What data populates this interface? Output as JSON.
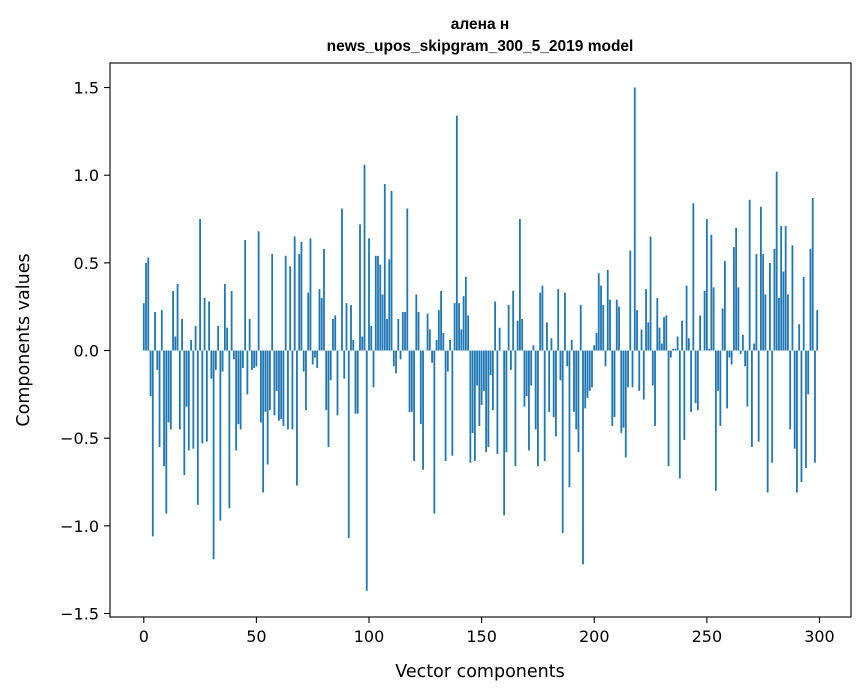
{
  "chart_data": {
    "type": "bar",
    "title": "алена н",
    "subtitle": "news_upos_skipgram_300_5_2019 model",
    "xlabel": "Vector components",
    "ylabel": "Components values",
    "xlim": [
      -15,
      314
    ],
    "ylim": [
      -1.52,
      1.64
    ],
    "xticks": [
      0,
      50,
      100,
      150,
      200,
      250,
      300
    ],
    "yticks": [
      -1.5,
      -1.0,
      -0.5,
      0.0,
      0.5,
      1.0,
      1.5
    ],
    "ytick_labels": [
      "−1.5",
      "−1.0",
      "−0.5",
      "0.0",
      "0.5",
      "1.0",
      "1.5"
    ],
    "grid": false,
    "bar_color": "#1f77b4",
    "values": [
      0.27,
      0.5,
      0.53,
      -0.26,
      -1.06,
      0.22,
      -0.11,
      -0.55,
      0.23,
      -0.66,
      -0.93,
      -0.41,
      -0.45,
      0.34,
      0.08,
      0.38,
      -0.45,
      0.18,
      -0.71,
      -0.32,
      -0.57,
      0.06,
      -0.56,
      0.14,
      -0.88,
      0.75,
      -0.53,
      0.3,
      -0.52,
      0.28,
      -0.16,
      -1.19,
      -0.11,
      0.14,
      -0.97,
      -0.12,
      0.38,
      0.13,
      -0.9,
      0.34,
      -0.05,
      -0.57,
      -0.42,
      -0.45,
      -0.1,
      0.63,
      -0.25,
      0.18,
      -0.11,
      -0.1,
      -0.09,
      0.68,
      -0.41,
      -0.81,
      -0.35,
      -0.65,
      -0.34,
      0.55,
      -0.37,
      -0.23,
      -0.4,
      -0.39,
      -0.43,
      0.54,
      -0.45,
      0.48,
      -0.45,
      0.65,
      -0.77,
      0.55,
      0.62,
      -0.12,
      -0.34,
      0.33,
      0.64,
      -0.08,
      -0.04,
      -0.1,
      0.35,
      0.3,
      0.58,
      -0.34,
      -0.55,
      -0.17,
      0.18,
      0.2,
      -0.37,
      0.0,
      0.81,
      -0.16,
      0.27,
      -1.07,
      0.26,
      0.06,
      -0.36,
      -0.36,
      0.72,
      0.08,
      1.06,
      -1.37,
      0.64,
      0.14,
      -0.21,
      0.54,
      0.54,
      0.49,
      0.32,
      0.95,
      0.18,
      0.52,
      0.91,
      -0.09,
      -0.13,
      0.18,
      -0.05,
      0.22,
      0.22,
      0.81,
      -0.35,
      -0.35,
      -0.63,
      0.32,
      0.22,
      -0.42,
      -0.68,
      0.0,
      0.21,
      0.12,
      -0.07,
      -0.93,
      0.06,
      0.23,
      0.34,
      0.1,
      -0.63,
      -0.12,
      0.06,
      -0.6,
      0.27,
      1.34,
      0.27,
      0.12,
      0.31,
      0.42,
      0.2,
      -0.64,
      -0.47,
      -0.63,
      -0.2,
      -0.43,
      -0.31,
      -0.23,
      -0.58,
      -0.55,
      -0.14,
      -0.34,
      0.28,
      -0.59,
      0.13,
      0.0,
      -0.94,
      -0.58,
      0.26,
      -0.11,
      0.34,
      -0.66,
      0.17,
      0.75,
      0.18,
      -0.32,
      -0.26,
      -0.57,
      -0.2,
      0.03,
      -0.45,
      -0.66,
      0.33,
      0.37,
      -0.63,
      0.16,
      -0.35,
      0.07,
      -0.38,
      -0.49,
      0.35,
      -0.17,
      -1.04,
      0.33,
      -0.09,
      -0.78,
      0.06,
      -0.35,
      -0.45,
      -0.58,
      0.26,
      -1.22,
      -0.33,
      -0.27,
      -0.23,
      -0.21,
      0.03,
      0.1,
      0.44,
      0.37,
      0.26,
      -0.09,
      0.46,
      0.29,
      -0.43,
      -0.38,
      0.29,
      0.25,
      -0.47,
      -0.44,
      -0.61,
      -0.21,
      0.57,
      -0.21,
      1.5,
      0.23,
      -0.23,
      0.12,
      -0.28,
      0.35,
      0.16,
      0.65,
      -0.2,
      -0.43,
      0.3,
      0.13,
      0.04,
      0.19,
      0.2,
      -0.66,
      -0.04,
      0.01,
      0.01,
      0.08,
      -0.73,
      0.17,
      -0.51,
      0.37,
      0.07,
      -0.35,
      0.84,
      -0.3,
      -0.34,
      0.2,
      0.0,
      0.34,
      0.75,
      0.01,
      0.66,
      0.36,
      -0.8,
      -0.23,
      -0.43,
      0.24,
      0.51,
      -0.33,
      -0.04,
      -0.08,
      0.59,
      0.7,
      0.36,
      -0.02,
      0.09,
      -0.09,
      -0.32,
      0.86,
      -0.55,
      0.04,
      0.55,
      -0.52,
      0.82,
      0.55,
      0.32,
      -0.81,
      0.5,
      -0.64,
      0.58,
      1.02,
      0.3,
      0.71,
      0.45,
      0.71,
      0.32,
      -0.45,
      0.6,
      -0.56,
      -0.81,
      0.15,
      -0.75,
      0.42,
      -0.67,
      -0.25,
      0.58,
      0.87,
      -0.64,
      0.23
    ]
  }
}
